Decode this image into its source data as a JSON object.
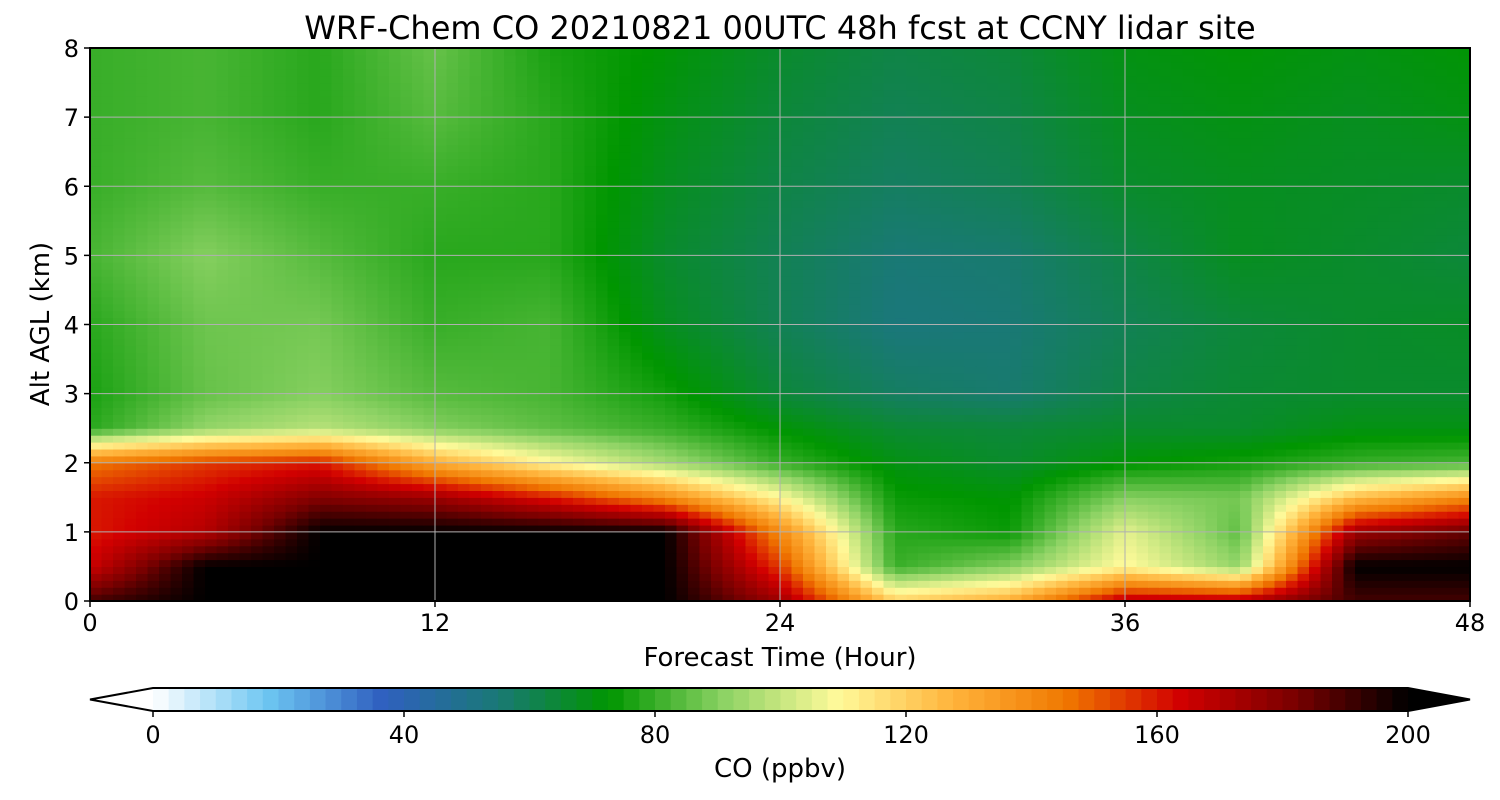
{
  "chart_data": {
    "type": "heatmap",
    "title": "WRF-Chem CO  20210821 00UTC 48h fcst at CCNY lidar site",
    "xlabel": "Forecast Time (Hour)",
    "ylabel": "Alt AGL (km)",
    "xlim": [
      0,
      48
    ],
    "ylim": [
      0,
      8
    ],
    "x_ticks": [
      "0",
      "12",
      "24",
      "36",
      "48"
    ],
    "y_ticks": [
      "0",
      "1",
      "2",
      "3",
      "4",
      "5",
      "6",
      "7",
      "8"
    ],
    "grid": true,
    "colorbar": {
      "label": "CO  (ppbv)",
      "range": [
        0,
        200
      ],
      "ticks": [
        "0",
        "40",
        "80",
        "120",
        "160",
        "200"
      ],
      "extend": "both",
      "colors": [
        "#ffffff",
        "#6dc6f2",
        "#3060c0",
        "#1a7878",
        "#009600",
        "#8cd264",
        "#fffa9a",
        "#ffb43c",
        "#f07800",
        "#d20000",
        "#7a0000",
        "#000000"
      ]
    },
    "x": [
      0,
      4,
      8,
      12,
      16,
      20,
      24,
      28,
      32,
      36,
      40,
      44,
      48
    ],
    "y": [
      0,
      0.5,
      1,
      1.5,
      2,
      2.5,
      3,
      4,
      5,
      6,
      7,
      8
    ],
    "z": [
      [
        190,
        200,
        200,
        200,
        200,
        200,
        175,
        120,
        130,
        170,
        170,
        190,
        190
      ],
      [
        165,
        200,
        200,
        200,
        200,
        200,
        155,
        80,
        90,
        110,
        92,
        200,
        200
      ],
      [
        160,
        170,
        200,
        200,
        200,
        200,
        140,
        78,
        74,
        105,
        85,
        175,
        185
      ],
      [
        160,
        165,
        180,
        175,
        160,
        140,
        110,
        74,
        72,
        90,
        88,
        125,
        140
      ],
      [
        145,
        155,
        160,
        130,
        110,
        95,
        80,
        70,
        66,
        72,
        75,
        80,
        82
      ],
      [
        78,
        92,
        98,
        90,
        85,
        80,
        72,
        65,
        64,
        66,
        66,
        70,
        70
      ],
      [
        76,
        86,
        90,
        84,
        82,
        75,
        64,
        58,
        56,
        62,
        65,
        66,
        66
      ],
      [
        78,
        87,
        88,
        80,
        82,
        68,
        60,
        54,
        55,
        60,
        64,
        66,
        67
      ],
      [
        82,
        90,
        84,
        78,
        78,
        66,
        60,
        55,
        56,
        62,
        68,
        66,
        64
      ],
      [
        80,
        84,
        80,
        80,
        78,
        68,
        62,
        58,
        60,
        66,
        68,
        67,
        66
      ],
      [
        80,
        82,
        78,
        84,
        78,
        70,
        64,
        60,
        62,
        68,
        70,
        68,
        70
      ],
      [
        80,
        82,
        78,
        86,
        76,
        72,
        66,
        62,
        64,
        70,
        72,
        70,
        72
      ]
    ]
  }
}
